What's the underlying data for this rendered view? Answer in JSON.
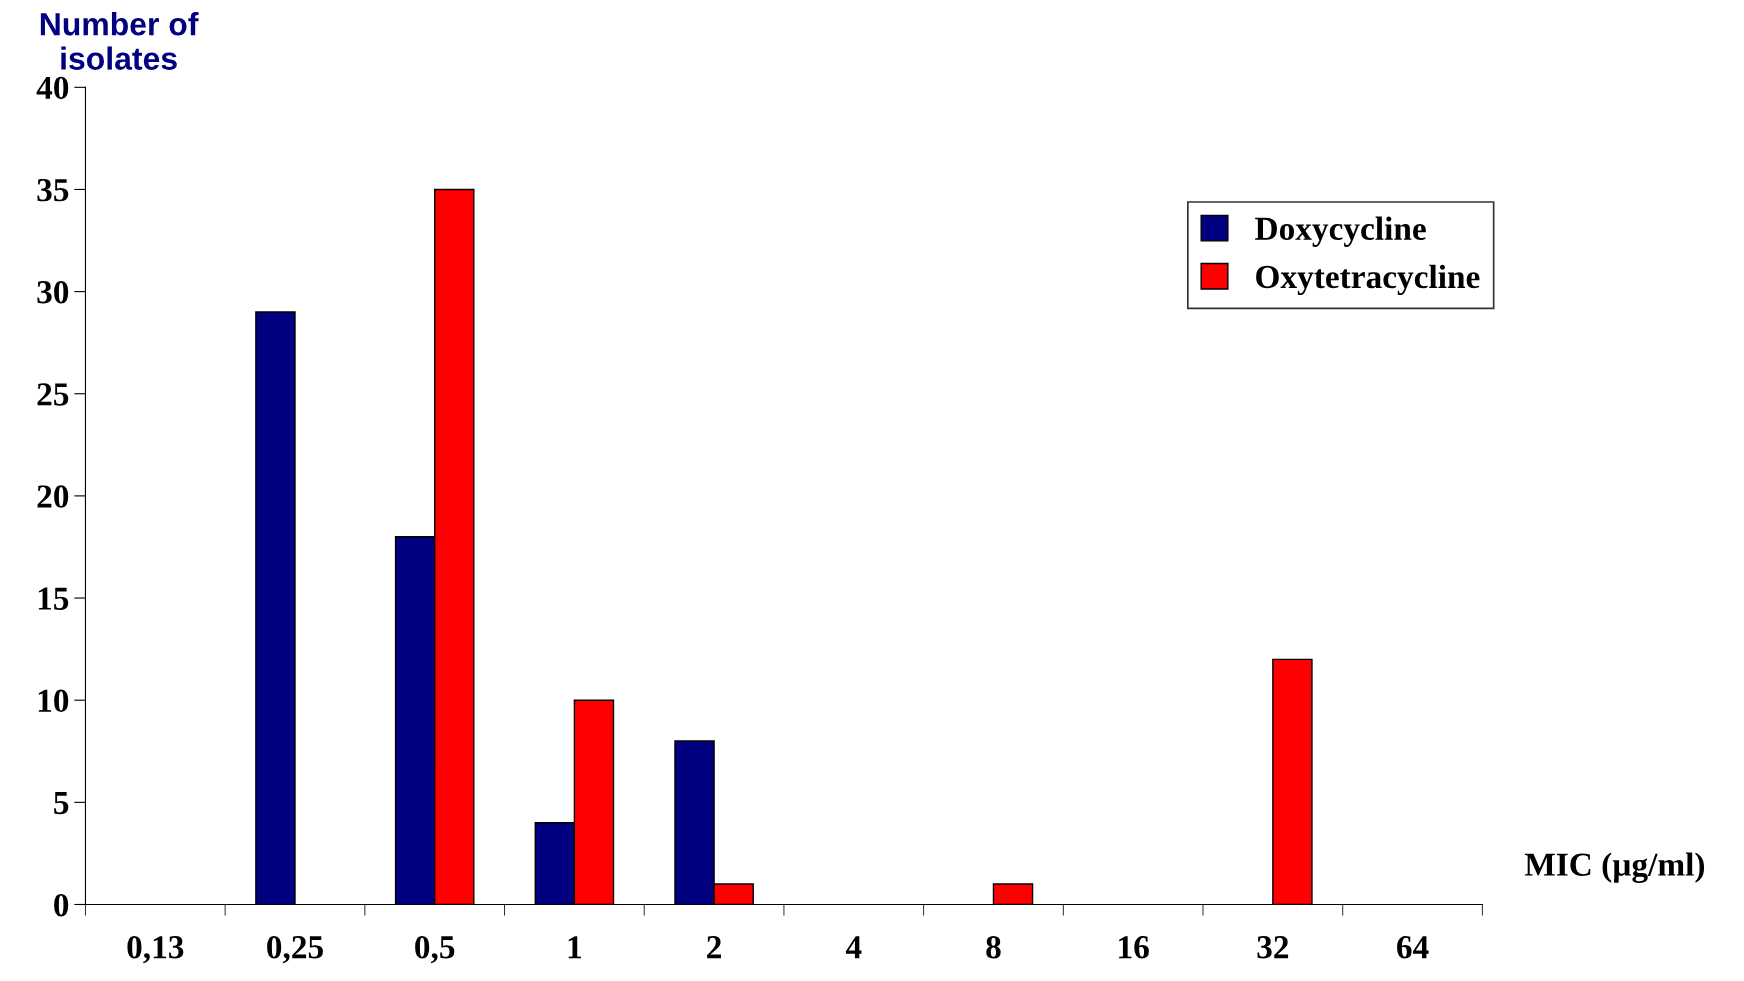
{
  "chart_data": {
    "type": "bar",
    "xlabel": "MIC (µg/ml)",
    "ylabel": "Number of isolates",
    "categories": [
      "0,13",
      "0,25",
      "0,5",
      "1",
      "2",
      "4",
      "8",
      "16",
      "32",
      "64"
    ],
    "series": [
      {
        "name": "Doxycycline",
        "color": "#000080",
        "values": [
          0,
          29,
          18,
          4,
          8,
          0,
          0,
          0,
          0,
          0
        ]
      },
      {
        "name": "Oxytetracycline",
        "color": "#ff0000",
        "values": [
          0,
          0,
          35,
          10,
          1,
          0,
          1,
          0,
          12,
          0
        ]
      }
    ],
    "ylim": [
      0,
      40
    ],
    "yticks": [
      0,
      5,
      10,
      15,
      20,
      25,
      30,
      35,
      40
    ],
    "grid": false,
    "legend": "top right"
  }
}
